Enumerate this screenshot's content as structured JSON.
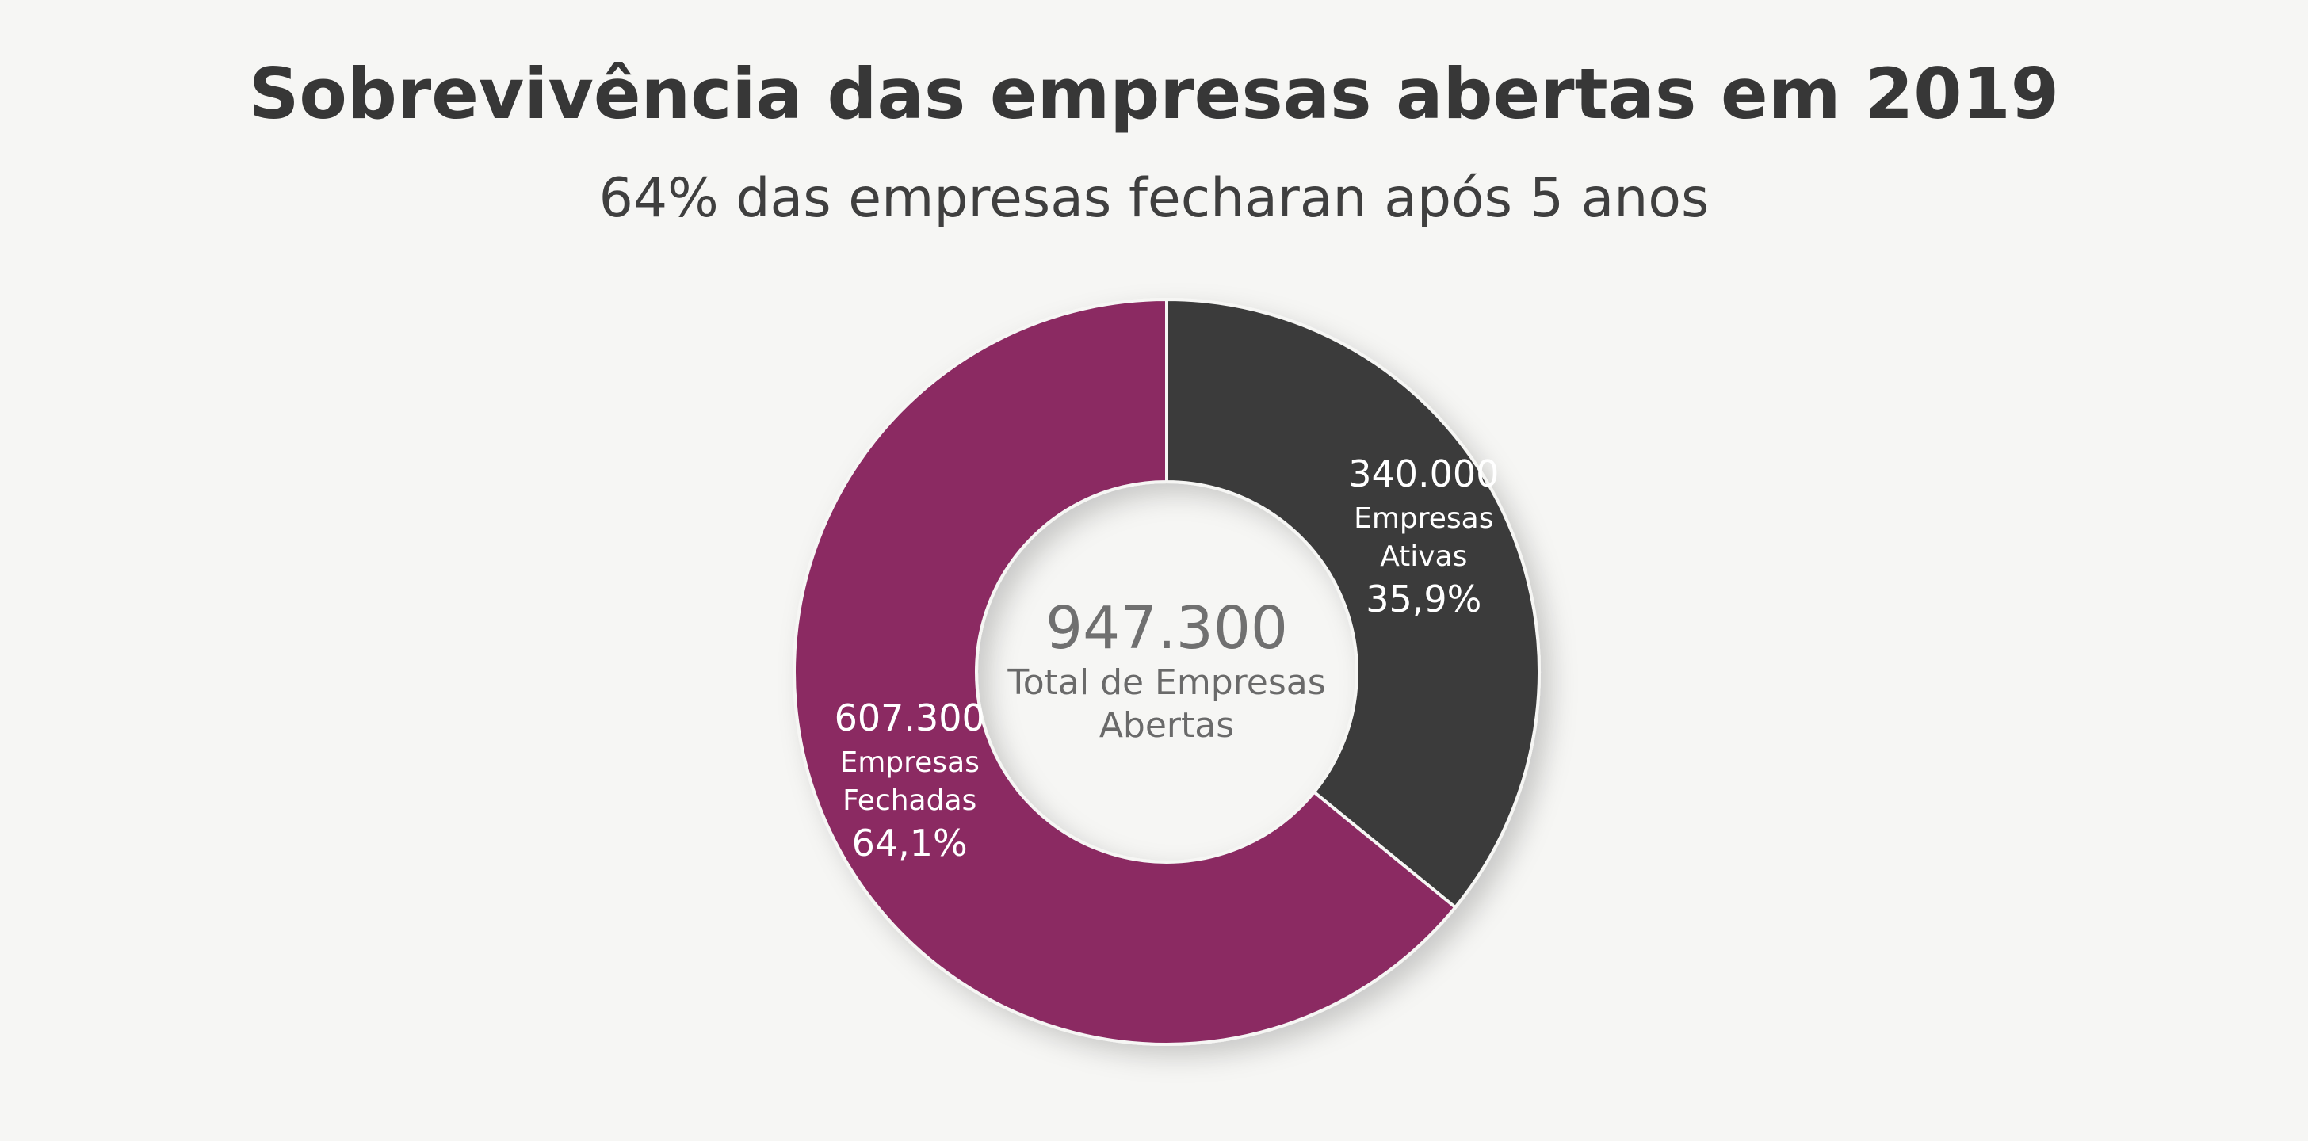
{
  "chart_data": {
    "type": "pie",
    "title": "Sobrevivência das empresas abertas em 2019",
    "subtitle": "64% das empresas fecharan após 5 anos",
    "center_value": "947.300",
    "center_label_line1": "Total de Empresas",
    "center_label_line2": "Abertas",
    "slices": [
      {
        "value": 340000,
        "value_label": "340.000",
        "label_line1": "Empresas",
        "label_line2": "Ativas",
        "percent": 35.9,
        "percent_label": "35,9%",
        "color": "#3a3a3a"
      },
      {
        "value": 607300,
        "value_label": "607.300",
        "label_line1": "Empresas",
        "label_line2": "Fechadas",
        "percent": 64.1,
        "percent_label": "64,1%",
        "color": "#8b2a62"
      }
    ],
    "center_value_color": "#707070",
    "center_label_color": "#6a6a6a"
  }
}
